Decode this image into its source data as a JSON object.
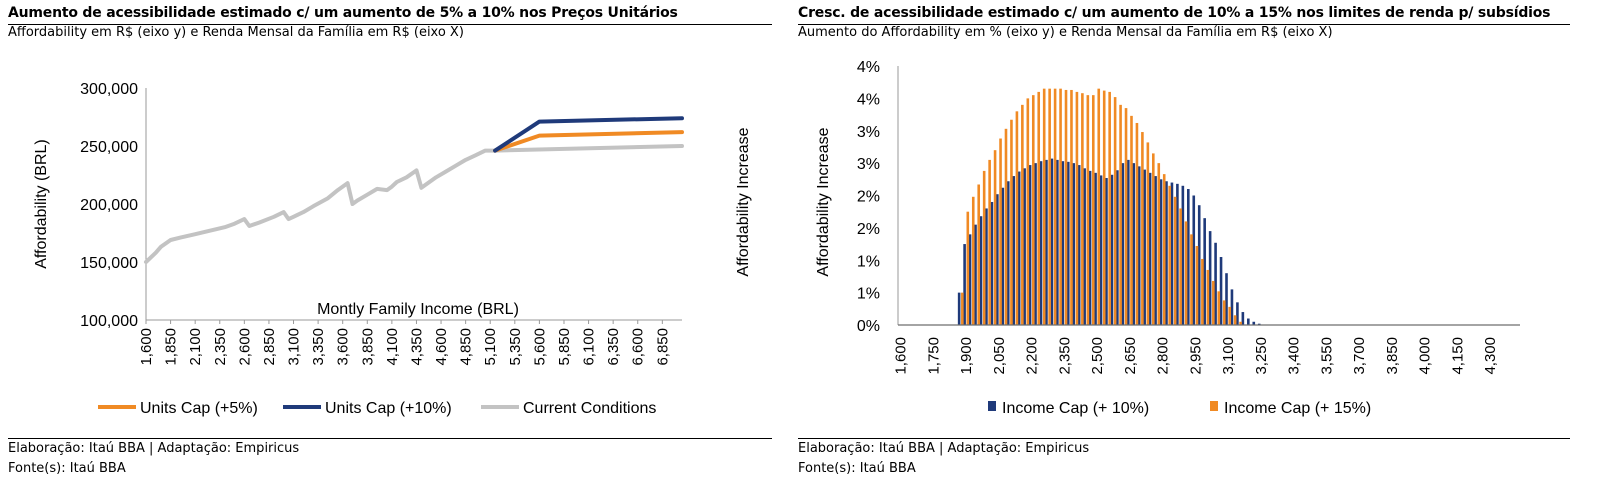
{
  "left": {
    "title": "Aumento de acessibilidade estimado c/ um aumento de 5% a 10% nos Preços Unitários",
    "subtitle": "Affordability em R$ (eixo y) e Renda Mensal da Família em R$ (eixo X)",
    "credit_line1": "Elaboração: Itaú BBA | Adaptação: Empiricus",
    "credit_line2": "Fonte(s): Itaú BBA"
  },
  "right": {
    "title": "Cresc. de acessibilidade estimado c/ um aumento de 10% a 15% nos limites de renda p/ subsídios",
    "subtitle": "Aumento do Affordability em % (eixo y) e Renda Mensal da Família em R$ (eixo X)",
    "credit_line1": "Elaboração: Itaú BBA | Adaptação: Empiricus",
    "credit_line2": "Fonte(s): Itaú BBA"
  },
  "chart_data": [
    {
      "type": "line",
      "xlabel": "Montly Family Income (BRL)",
      "ylabel": "Affordability (BRL)",
      "ylim": [
        100000,
        300000
      ],
      "yticks": [
        "100,000",
        "150,000",
        "200,000",
        "250,000",
        "300,000"
      ],
      "xlim": [
        1600,
        7050
      ],
      "xticks": [
        "1,600",
        "1,850",
        "2,100",
        "2,350",
        "2,600",
        "2,850",
        "3,100",
        "3,350",
        "3,600",
        "3,850",
        "4,100",
        "4,350",
        "4,600",
        "4,850",
        "5,100",
        "5,350",
        "5,600",
        "5,850",
        "6,100",
        "6,350",
        "6,600",
        "6,850"
      ],
      "legend_position": "bottom",
      "colors": {
        "Units Cap (+5%)": "#f08a24",
        "Units Cap (+10%)": "#1f3a7a",
        "Current Conditions": "#c3c3c3"
      },
      "series": [
        {
          "name": "Current Conditions",
          "x": [
            1600,
            1700,
            1750,
            1850,
            1950,
            2100,
            2250,
            2400,
            2500,
            2600,
            2650,
            2750,
            2900,
            3000,
            3050,
            3100,
            3150,
            3200,
            3300,
            3450,
            3550,
            3650,
            3700,
            3750,
            3850,
            3950,
            4050,
            4100,
            4150,
            4250,
            4350,
            4400,
            4450,
            4550,
            4650,
            4750,
            4850,
            4950,
            5050,
            5150,
            7050
          ],
          "y": [
            150000,
            158000,
            163000,
            169000,
            171000,
            174000,
            177000,
            180000,
            183000,
            187000,
            181000,
            184000,
            189000,
            193000,
            187000,
            189000,
            191000,
            193000,
            198000,
            205000,
            212000,
            218000,
            200000,
            203000,
            208000,
            213000,
            212000,
            215000,
            219000,
            223000,
            229000,
            214000,
            217000,
            223000,
            228000,
            233000,
            238000,
            242000,
            246000,
            246000,
            250000
          ]
        },
        {
          "name": "Units Cap (+5%)",
          "x": [
            5150,
            5600,
            7050
          ],
          "y": [
            246000,
            259000,
            262000
          ]
        },
        {
          "name": "Units Cap (+10%)",
          "x": [
            5150,
            5600,
            7050
          ],
          "y": [
            246000,
            271000,
            274000
          ]
        }
      ]
    },
    {
      "type": "bar",
      "xlabel": "",
      "ylabel": "Affordability Increase",
      "ylim": [
        0,
        4
      ],
      "yticks": [
        "0%",
        "1%",
        "1%",
        "2%",
        "2%",
        "3%",
        "3%",
        "4%",
        "4%"
      ],
      "categories": [
        "1,600",
        "",
        "",
        "",
        "",
        "",
        "1,750",
        "",
        "",
        "",
        "",
        "",
        "1,900",
        "",
        "",
        "",
        "",
        "",
        "2,050",
        "",
        "",
        "",
        "",
        "",
        "2,200",
        "",
        "",
        "",
        "",
        "",
        "2,350",
        "",
        "",
        "",
        "",
        "",
        "2,500",
        "",
        "",
        "",
        "",
        "",
        "2,650",
        "",
        "",
        "",
        "",
        "",
        "2,800",
        "",
        "",
        "",
        "",
        "",
        "2,950",
        "",
        "",
        "",
        "",
        "",
        "3,100",
        "",
        "",
        "",
        "",
        "",
        "3,250",
        "",
        "",
        "",
        "",
        "",
        "3,400",
        "",
        "",
        "",
        "",
        "",
        "3,550",
        "",
        "",
        "",
        "",
        "",
        "3,700",
        "",
        "",
        "",
        "",
        "",
        "3,850",
        "",
        "",
        "",
        "",
        "",
        "4,000",
        "",
        "",
        "",
        "",
        "",
        "4,150",
        "",
        "",
        "",
        "",
        "",
        "4,300",
        "",
        "",
        "",
        "",
        ""
      ],
      "x_start": 1600,
      "x_step": 25,
      "legend_position": "bottom",
      "colors": {
        "Income Cap (+ 10%)": "#1f3a7a",
        "Income Cap (+ 15%)": "#f08a24"
      },
      "series": [
        {
          "name": "Income Cap (+ 10%)",
          "x": [
            1875,
            1900,
            1925,
            1950,
            1975,
            2000,
            2025,
            2050,
            2075,
            2100,
            2125,
            2150,
            2175,
            2200,
            2225,
            2250,
            2275,
            2300,
            2325,
            2350,
            2375,
            2400,
            2425,
            2450,
            2475,
            2500,
            2525,
            2550,
            2575,
            2600,
            2625,
            2650,
            2675,
            2700,
            2725,
            2750,
            2775,
            2800,
            2825,
            2850,
            2875,
            2900,
            2925,
            2950,
            2975,
            3000,
            3025,
            3050,
            3075,
            3100,
            3125,
            3150,
            3175,
            3200,
            3225,
            3250,
            3275,
            3300,
            3325,
            3350,
            3375,
            3400,
            3425,
            3450,
            3475,
            3500,
            3525,
            3550,
            3575,
            3600,
            3625,
            3650,
            3675,
            3700,
            3725,
            3750,
            3775,
            3800,
            3825,
            3850,
            3875,
            3900,
            3925,
            3950,
            3975,
            4000,
            4025,
            4050,
            4075,
            4100,
            4125,
            4150
          ],
          "values": [
            0.5,
            1.25,
            1.4,
            1.55,
            1.68,
            1.8,
            1.9,
            2.02,
            2.12,
            2.22,
            2.3,
            2.37,
            2.42,
            2.47,
            2.5,
            2.53,
            2.55,
            2.57,
            2.55,
            2.53,
            2.52,
            2.5,
            2.47,
            2.42,
            2.38,
            2.35,
            2.31,
            2.27,
            2.32,
            2.39,
            2.5,
            2.55,
            2.5,
            2.45,
            2.4,
            2.35,
            2.3,
            2.25,
            2.22,
            2.2,
            2.18,
            2.15,
            2.1,
            2.0,
            1.85,
            1.65,
            1.45,
            1.27,
            1.05,
            0.8,
            0.55,
            0.35,
            0.2,
            0.1,
            0.05,
            0.02,
            0.0,
            0.0,
            0.0,
            0.0,
            0.0,
            0.0,
            0.0,
            0.0,
            0.0,
            0.0,
            0.0,
            0.0,
            0.0,
            0.0,
            0.0,
            0.0,
            0.0,
            0.0,
            0.0,
            0.0,
            0.0,
            0.0,
            0.0,
            0.0,
            0.0,
            0.0,
            0.0,
            0.0,
            0.0,
            0.0,
            0.0,
            0.0,
            0.0,
            0.0,
            0.0,
            0.0
          ]
        },
        {
          "name": "Income Cap (+ 15%)",
          "x": [
            1875,
            1900,
            1925,
            1950,
            1975,
            2000,
            2025,
            2050,
            2075,
            2100,
            2125,
            2150,
            2175,
            2200,
            2225,
            2250,
            2275,
            2300,
            2325,
            2350,
            2375,
            2400,
            2425,
            2450,
            2475,
            2500,
            2525,
            2550,
            2575,
            2600,
            2625,
            2650,
            2675,
            2700,
            2725,
            2750,
            2775,
            2800,
            2825,
            2850,
            2875,
            2900,
            2925,
            2950,
            2975,
            3000,
            3025,
            3050,
            3075,
            3100,
            3125,
            3150,
            3175,
            3200,
            3225,
            3250,
            3275,
            3300,
            3325,
            3350,
            3375,
            3400,
            3425,
            3450,
            3475,
            3500,
            3525,
            3550,
            3575,
            3600,
            3625,
            3650,
            3675,
            3700,
            3725,
            3750,
            3775,
            3800,
            3825,
            3850,
            3875,
            3900,
            3925,
            3950,
            3975,
            4000,
            4025,
            4050,
            4075,
            4100,
            4125,
            4150
          ],
          "values": [
            0.5,
            1.75,
            1.98,
            2.17,
            2.38,
            2.55,
            2.7,
            2.88,
            3.03,
            3.17,
            3.3,
            3.4,
            3.5,
            3.55,
            3.6,
            3.65,
            3.65,
            3.65,
            3.65,
            3.63,
            3.63,
            3.6,
            3.58,
            3.55,
            3.55,
            3.65,
            3.62,
            3.6,
            3.52,
            3.4,
            3.35,
            3.23,
            3.12,
            2.98,
            2.82,
            2.65,
            2.5,
            2.33,
            2.15,
            1.98,
            1.8,
            1.6,
            1.4,
            1.22,
            1.02,
            0.85,
            0.68,
            0.52,
            0.38,
            0.28,
            0.15,
            0.05,
            0.0,
            0.0,
            0.0,
            0.0,
            0.0,
            0.0,
            0.0,
            0.0,
            0.0,
            0.0,
            0.0,
            0.0,
            0.0,
            0.0,
            0.0,
            0.0,
            0.0,
            0.0,
            0.0,
            0.0,
            0.0,
            0.0,
            0.0,
            0.0,
            0.0,
            0.0,
            0.0,
            0.0,
            0.0,
            0.0,
            0.0,
            0.0,
            0.0,
            0.0,
            0.0,
            0.0,
            0.0,
            0.0,
            0.0,
            0.0
          ]
        }
      ]
    }
  ]
}
